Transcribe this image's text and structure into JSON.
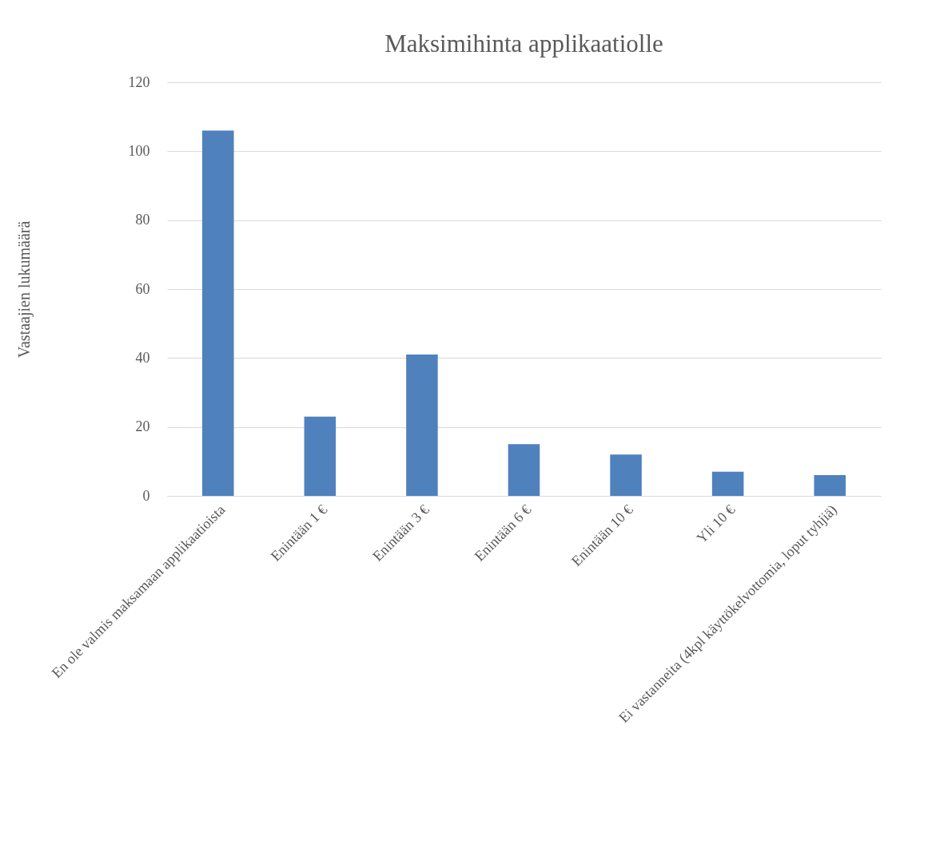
{
  "chart_data": {
    "type": "bar",
    "title": "Maksimihinta applikaatiolle",
    "ylabel": "Vastaajien lukumäärä",
    "categories": [
      "En ole valmis maksamaan applikaatioista",
      "Enintään 1 €",
      "Enintään 3 €",
      "Enintään 6 €",
      "Enintään 10 €",
      "Yli 10  €",
      "Ei vastanneita (4kpl käyttökelvottomia, loput tyhjiä)"
    ],
    "values": [
      106,
      23,
      41,
      15,
      12,
      7,
      6
    ],
    "color": "#4f81bd",
    "ylim": [
      0,
      120
    ],
    "yticks": [
      0,
      20,
      40,
      60,
      80,
      100,
      120
    ],
    "grid": "y"
  }
}
